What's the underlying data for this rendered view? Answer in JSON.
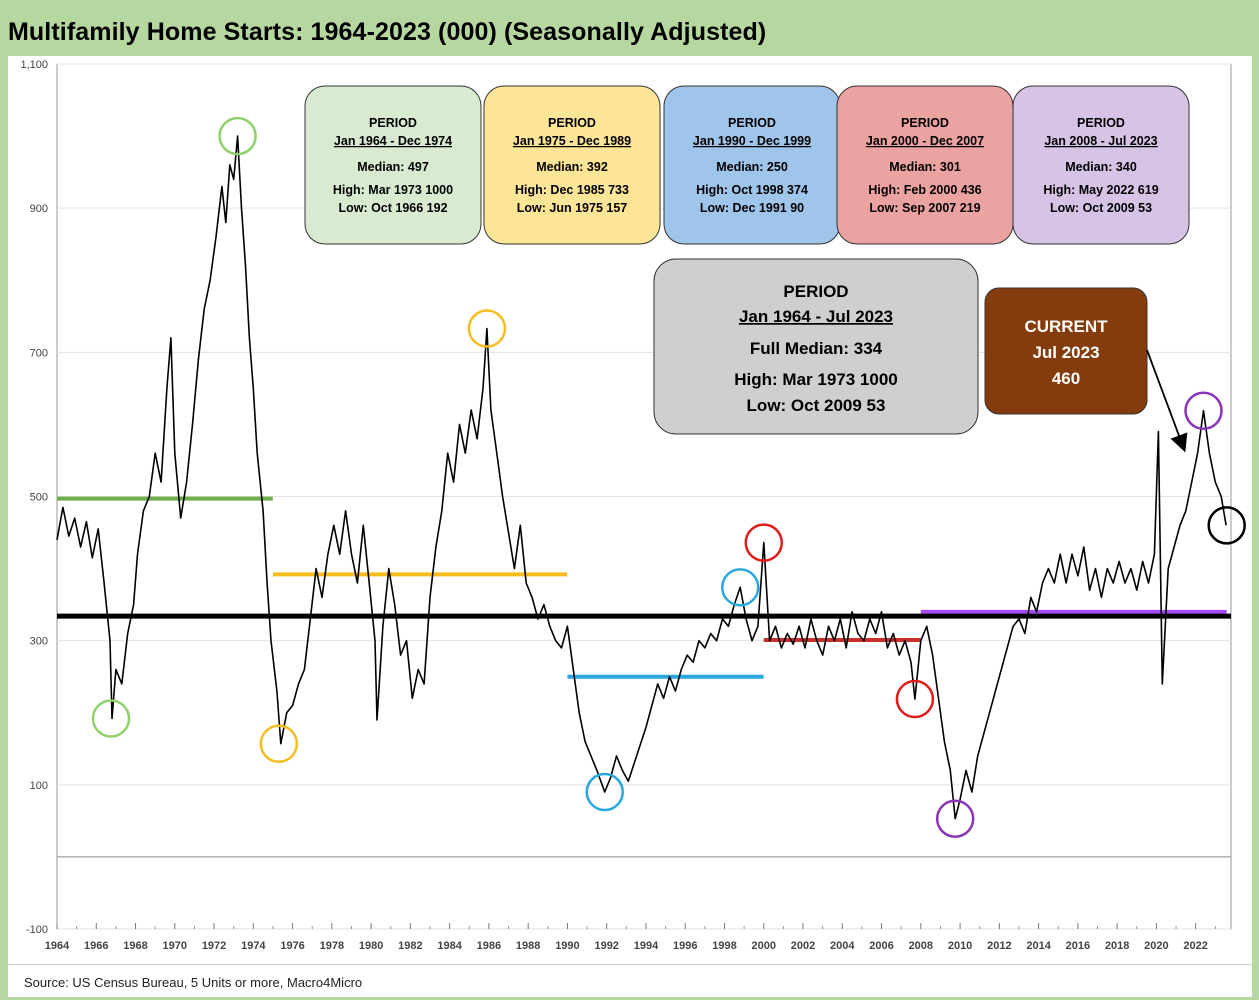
{
  "chart_data": {
    "type": "line",
    "title": "Multifamily Home Starts: 1964-2023 (000) (Seasonally Adjusted)",
    "xlabel": "",
    "ylabel": "",
    "x_tick_labels": [
      "1964",
      "1966",
      "1968",
      "1970",
      "1972",
      "1974",
      "1976",
      "1978",
      "1980",
      "1982",
      "1984",
      "1986",
      "1988",
      "1990",
      "1992",
      "1994",
      "1996",
      "1998",
      "2000",
      "2002",
      "2004",
      "2006",
      "2008",
      "2010",
      "2012",
      "2014",
      "2016",
      "2018",
      "2020",
      "2022"
    ],
    "y_tick_labels": [
      "1,100",
      "900",
      "700",
      "500",
      "300",
      "100",
      "-100"
    ],
    "y_tick_values": [
      1100,
      900,
      700,
      500,
      300,
      100,
      -100
    ],
    "ylim": [
      -100,
      1100
    ],
    "xlim": [
      1964,
      2023.8
    ],
    "grid": true,
    "series": [
      {
        "color": "#000000",
        "points": [
          [
            1964.0,
            440
          ],
          [
            1964.3,
            485
          ],
          [
            1964.6,
            445
          ],
          [
            1964.9,
            470
          ],
          [
            1965.2,
            430
          ],
          [
            1965.5,
            465
          ],
          [
            1965.8,
            415
          ],
          [
            1966.1,
            455
          ],
          [
            1966.4,
            380
          ],
          [
            1966.7,
            300
          ],
          [
            1966.8,
            192
          ],
          [
            1967.0,
            260
          ],
          [
            1967.3,
            240
          ],
          [
            1967.6,
            310
          ],
          [
            1967.9,
            350
          ],
          [
            1968.1,
            420
          ],
          [
            1968.4,
            480
          ],
          [
            1968.7,
            500
          ],
          [
            1969.0,
            560
          ],
          [
            1969.3,
            520
          ],
          [
            1969.6,
            650
          ],
          [
            1969.8,
            720
          ],
          [
            1970.0,
            560
          ],
          [
            1970.3,
            470
          ],
          [
            1970.6,
            520
          ],
          [
            1970.9,
            600
          ],
          [
            1971.2,
            690
          ],
          [
            1971.5,
            760
          ],
          [
            1971.8,
            800
          ],
          [
            1972.1,
            860
          ],
          [
            1972.4,
            930
          ],
          [
            1972.6,
            880
          ],
          [
            1972.8,
            960
          ],
          [
            1973.0,
            940
          ],
          [
            1973.2,
            1000
          ],
          [
            1973.4,
            900
          ],
          [
            1973.6,
            820
          ],
          [
            1973.8,
            720
          ],
          [
            1974.0,
            650
          ],
          [
            1974.2,
            560
          ],
          [
            1974.5,
            480
          ],
          [
            1974.7,
            380
          ],
          [
            1974.9,
            300
          ],
          [
            1975.2,
            230
          ],
          [
            1975.4,
            157
          ],
          [
            1975.7,
            200
          ],
          [
            1976.0,
            210
          ],
          [
            1976.3,
            240
          ],
          [
            1976.6,
            260
          ],
          [
            1976.9,
            330
          ],
          [
            1977.2,
            400
          ],
          [
            1977.5,
            360
          ],
          [
            1977.8,
            420
          ],
          [
            1978.1,
            460
          ],
          [
            1978.4,
            420
          ],
          [
            1978.7,
            480
          ],
          [
            1979.0,
            420
          ],
          [
            1979.3,
            380
          ],
          [
            1979.6,
            460
          ],
          [
            1979.9,
            380
          ],
          [
            1980.2,
            300
          ],
          [
            1980.3,
            190
          ],
          [
            1980.6,
            320
          ],
          [
            1980.9,
            400
          ],
          [
            1981.2,
            350
          ],
          [
            1981.5,
            280
          ],
          [
            1981.8,
            300
          ],
          [
            1982.1,
            220
          ],
          [
            1982.4,
            260
          ],
          [
            1982.7,
            240
          ],
          [
            1983.0,
            360
          ],
          [
            1983.3,
            430
          ],
          [
            1983.6,
            480
          ],
          [
            1983.9,
            560
          ],
          [
            1984.2,
            520
          ],
          [
            1984.5,
            600
          ],
          [
            1984.8,
            560
          ],
          [
            1985.1,
            620
          ],
          [
            1985.4,
            580
          ],
          [
            1985.7,
            650
          ],
          [
            1985.9,
            733
          ],
          [
            1986.1,
            620
          ],
          [
            1986.4,
            560
          ],
          [
            1986.7,
            500
          ],
          [
            1987.0,
            450
          ],
          [
            1987.3,
            400
          ],
          [
            1987.6,
            460
          ],
          [
            1987.9,
            380
          ],
          [
            1988.2,
            360
          ],
          [
            1988.5,
            330
          ],
          [
            1988.8,
            350
          ],
          [
            1989.1,
            320
          ],
          [
            1989.4,
            300
          ],
          [
            1989.7,
            290
          ],
          [
            1990.0,
            320
          ],
          [
            1990.3,
            260
          ],
          [
            1990.6,
            200
          ],
          [
            1990.9,
            160
          ],
          [
            1991.2,
            140
          ],
          [
            1991.5,
            120
          ],
          [
            1991.9,
            90
          ],
          [
            1992.2,
            110
          ],
          [
            1992.5,
            140
          ],
          [
            1992.8,
            120
          ],
          [
            1993.1,
            105
          ],
          [
            1993.4,
            130
          ],
          [
            1993.7,
            155
          ],
          [
            1994.0,
            180
          ],
          [
            1994.3,
            210
          ],
          [
            1994.6,
            240
          ],
          [
            1994.9,
            220
          ],
          [
            1995.2,
            250
          ],
          [
            1995.5,
            230
          ],
          [
            1995.8,
            260
          ],
          [
            1996.1,
            280
          ],
          [
            1996.4,
            270
          ],
          [
            1996.7,
            300
          ],
          [
            1997.0,
            290
          ],
          [
            1997.3,
            310
          ],
          [
            1997.6,
            300
          ],
          [
            1997.9,
            330
          ],
          [
            1998.2,
            320
          ],
          [
            1998.5,
            350
          ],
          [
            1998.8,
            374
          ],
          [
            1999.1,
            330
          ],
          [
            1999.4,
            300
          ],
          [
            1999.7,
            320
          ],
          [
            2000.0,
            436
          ],
          [
            2000.3,
            300
          ],
          [
            2000.6,
            320
          ],
          [
            2000.9,
            290
          ],
          [
            2001.2,
            310
          ],
          [
            2001.5,
            295
          ],
          [
            2001.8,
            320
          ],
          [
            2002.1,
            290
          ],
          [
            2002.4,
            330
          ],
          [
            2002.7,
            300
          ],
          [
            2003.0,
            280
          ],
          [
            2003.3,
            320
          ],
          [
            2003.6,
            300
          ],
          [
            2003.9,
            330
          ],
          [
            2004.2,
            290
          ],
          [
            2004.5,
            340
          ],
          [
            2004.8,
            310
          ],
          [
            2005.1,
            300
          ],
          [
            2005.4,
            330
          ],
          [
            2005.7,
            310
          ],
          [
            2006.0,
            340
          ],
          [
            2006.3,
            290
          ],
          [
            2006.6,
            310
          ],
          [
            2006.9,
            280
          ],
          [
            2007.2,
            300
          ],
          [
            2007.5,
            270
          ],
          [
            2007.7,
            219
          ],
          [
            2008.0,
            300
          ],
          [
            2008.3,
            320
          ],
          [
            2008.6,
            280
          ],
          [
            2008.9,
            220
          ],
          [
            2009.2,
            160
          ],
          [
            2009.5,
            120
          ],
          [
            2009.75,
            53
          ],
          [
            2010.0,
            80
          ],
          [
            2010.3,
            120
          ],
          [
            2010.6,
            90
          ],
          [
            2010.9,
            140
          ],
          [
            2011.2,
            170
          ],
          [
            2011.5,
            200
          ],
          [
            2011.8,
            230
          ],
          [
            2012.1,
            260
          ],
          [
            2012.4,
            290
          ],
          [
            2012.7,
            320
          ],
          [
            2013.0,
            330
          ],
          [
            2013.3,
            310
          ],
          [
            2013.6,
            360
          ],
          [
            2013.9,
            340
          ],
          [
            2014.2,
            380
          ],
          [
            2014.5,
            400
          ],
          [
            2014.8,
            380
          ],
          [
            2015.1,
            420
          ],
          [
            2015.4,
            380
          ],
          [
            2015.7,
            420
          ],
          [
            2016.0,
            390
          ],
          [
            2016.3,
            430
          ],
          [
            2016.6,
            370
          ],
          [
            2016.9,
            400
          ],
          [
            2017.2,
            360
          ],
          [
            2017.5,
            400
          ],
          [
            2017.8,
            380
          ],
          [
            2018.1,
            410
          ],
          [
            2018.4,
            380
          ],
          [
            2018.7,
            400
          ],
          [
            2019.0,
            370
          ],
          [
            2019.3,
            410
          ],
          [
            2019.6,
            380
          ],
          [
            2019.9,
            420
          ],
          [
            2020.1,
            590
          ],
          [
            2020.3,
            240
          ],
          [
            2020.6,
            400
          ],
          [
            2020.9,
            430
          ],
          [
            2021.2,
            460
          ],
          [
            2021.5,
            480
          ],
          [
            2021.8,
            520
          ],
          [
            2022.1,
            560
          ],
          [
            2022.4,
            619
          ],
          [
            2022.7,
            560
          ],
          [
            2023.0,
            520
          ],
          [
            2023.3,
            500
          ],
          [
            2023.55,
            460
          ]
        ]
      }
    ],
    "median_lines": [
      {
        "from": 1964.0,
        "to": 1974.99,
        "value": 497,
        "color": "#6fae4b"
      },
      {
        "from": 1975.0,
        "to": 1989.99,
        "value": 392,
        "color": "#f5bd1f"
      },
      {
        "from": 1990.0,
        "to": 1999.99,
        "value": 250,
        "color": "#29a7df"
      },
      {
        "from": 2000.0,
        "to": 2007.99,
        "value": 301,
        "color": "#c9302c"
      },
      {
        "from": 2008.0,
        "to": 2023.58,
        "value": 340,
        "color": "#a64bf4"
      },
      {
        "from": 1964.0,
        "to": 2023.8,
        "value": 334,
        "color": "#000000"
      }
    ],
    "highlight_circles": [
      {
        "x": 1966.75,
        "y": 192,
        "color": "#8fd16b"
      },
      {
        "x": 1973.2,
        "y": 1000,
        "color": "#8fd16b"
      },
      {
        "x": 1975.3,
        "y": 157,
        "color": "#f5bd1f"
      },
      {
        "x": 1985.9,
        "y": 733,
        "color": "#f5bd1f"
      },
      {
        "x": 1991.9,
        "y": 90,
        "color": "#29a7df"
      },
      {
        "x": 1998.8,
        "y": 374,
        "color": "#29a7df"
      },
      {
        "x": 2000.0,
        "y": 436,
        "color": "#e01b1b"
      },
      {
        "x": 2007.7,
        "y": 219,
        "color": "#e01b1b"
      },
      {
        "x": 2009.75,
        "y": 53,
        "color": "#8a34b8"
      },
      {
        "x": 2022.4,
        "y": 619,
        "color": "#8a34b8"
      },
      {
        "x": 2023.58,
        "y": 460,
        "color": "#000000"
      }
    ],
    "period_boxes": [
      {
        "header": "PERIOD",
        "range": "Jan 1964 - Dec 1974",
        "median": "Median: 497",
        "high": "High:  Mar 1973   1000",
        "low": "Low:   Oct 1966     192",
        "fill": "#d8ead0"
      },
      {
        "header": "PERIOD",
        "range": "Jan 1975 - Dec 1989",
        "median": "Median: 392",
        "high": "High:  Dec 1985   733",
        "low": "Low:  Jun 1975   157",
        "fill": "#fde597"
      },
      {
        "header": "PERIOD",
        "range": "Jan 1990 - Dec 1999",
        "median": "Median: 250",
        "high": "High:  Oct 1998   374",
        "low": "Low:  Dec 1991     90",
        "fill": "#9fc5ea"
      },
      {
        "header": "PERIOD",
        "range": "Jan 2000 - Dec 2007",
        "median": "Median: 301",
        "high": "High:  Feb 2000    436",
        "low": "Low: Sep 2007    219",
        "fill": "#eba3a1"
      },
      {
        "header": "PERIOD",
        "range": "Jan 2008 - Jul 2023",
        "median": "Median: 340",
        "high": "High:  May 2022   619",
        "low": "Low:  Oct 2009     53",
        "fill": "#d7c3e6"
      }
    ],
    "full_period_box": {
      "header": "PERIOD",
      "range": "Jan 1964 - Jul 2023",
      "median": "Full Median: 334",
      "high": "High:  Mar 1973      1000",
      "low": "Low:   Oct 2009          53",
      "fill": "#cfcfcf"
    },
    "current_box": {
      "line1": "CURRENT",
      "line2": "Jul 2023",
      "line3": "460",
      "fill": "#843c0c",
      "text_color": "#ffffff"
    },
    "source": "Source: US Census Bureau, 5 Units or more, Macro4Micro"
  }
}
